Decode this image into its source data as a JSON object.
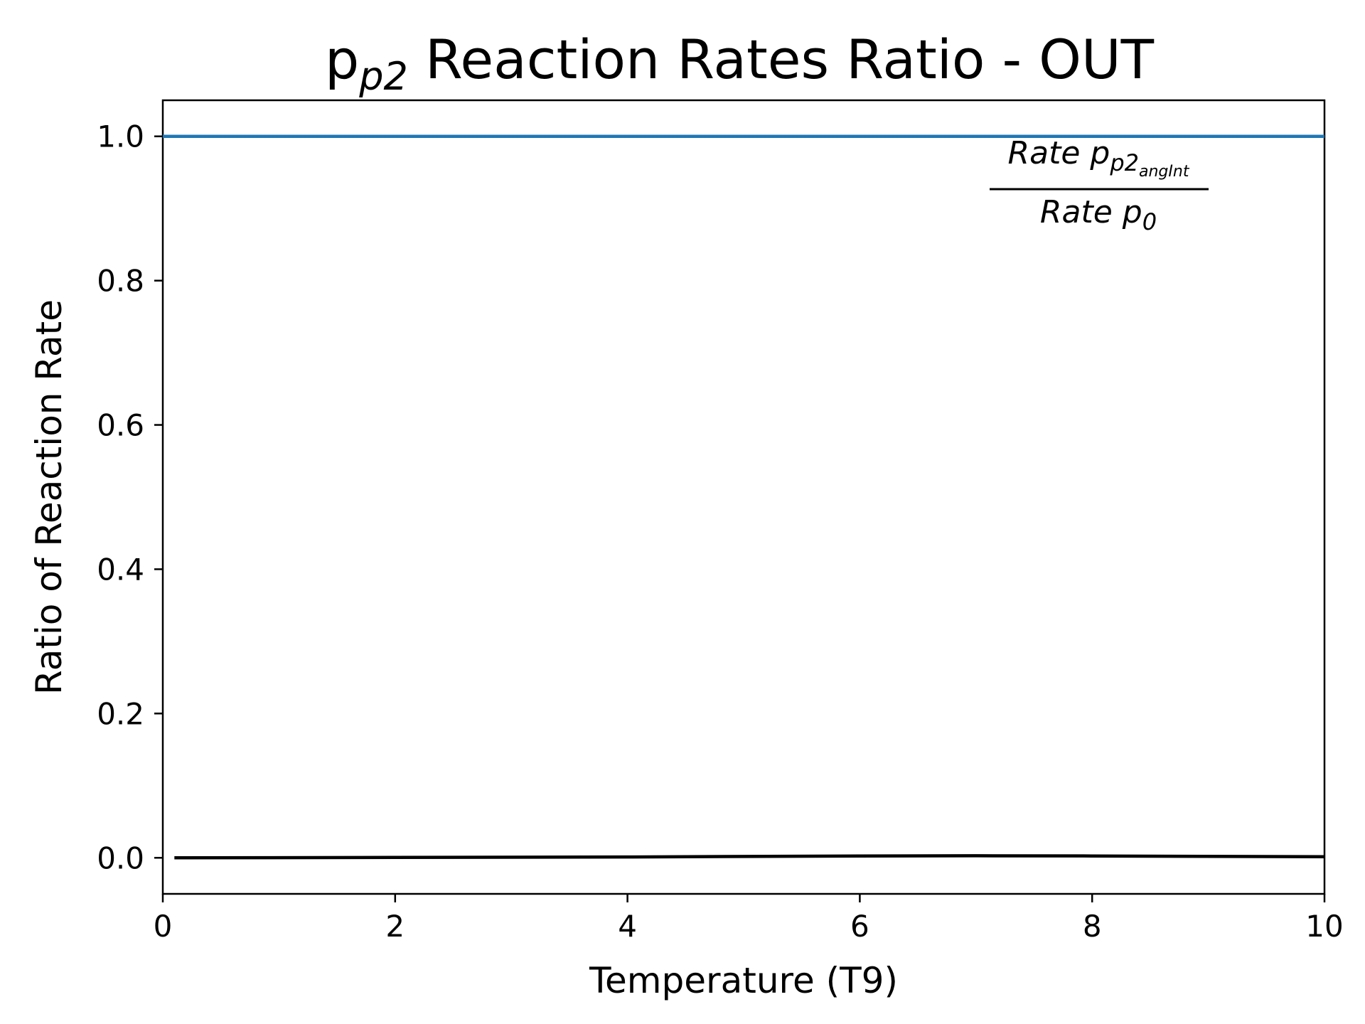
{
  "chart_data": {
    "type": "line",
    "title": {
      "base": "p",
      "sub": "p2",
      "rest": " Reaction Rates Ratio - OUT"
    },
    "xlabel": "Temperature (T9)",
    "ylabel": "Ratio of Reaction Rate",
    "xlim": [
      0,
      10
    ],
    "ylim": [
      -0.05,
      1.05
    ],
    "xticks": [
      0,
      2,
      4,
      6,
      8,
      10
    ],
    "xtick_labels": [
      "0",
      "2",
      "4",
      "6",
      "8",
      "10"
    ],
    "yticks": [
      0.0,
      0.2,
      0.4,
      0.6,
      0.8,
      1.0
    ],
    "ytick_labels": [
      "0.0",
      "0.2",
      "0.4",
      "0.6",
      "0.8",
      "1.0"
    ],
    "grid": false,
    "annotation": {
      "numerator": {
        "main": "Rate p",
        "sub": "p2",
        "subsub": "angInt"
      },
      "denominator": {
        "main": "Rate p",
        "sub": "0"
      },
      "placement": "top-right"
    },
    "series": [
      {
        "color": "#1f77b4",
        "x": [
          0,
          10
        ],
        "y": [
          1.0,
          1.0
        ]
      },
      {
        "color": "#000000",
        "x": [
          0.1,
          2,
          4,
          6,
          7,
          8,
          10
        ],
        "y": [
          0.0,
          0.0005,
          0.0012,
          0.0025,
          0.0028,
          0.0025,
          0.0015
        ]
      }
    ]
  }
}
